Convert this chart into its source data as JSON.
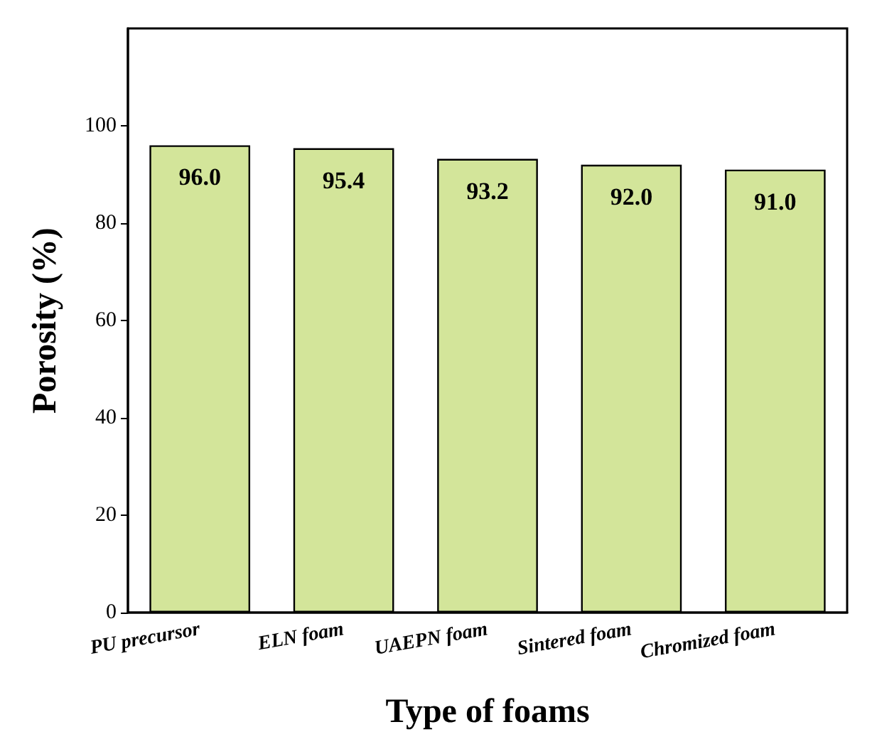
{
  "chart_data": {
    "type": "bar",
    "xlabel": "Type of foams",
    "ylabel": "Porosity (%)",
    "categories": [
      "PU precursor",
      "ELN foam",
      "UAEPN foam",
      "Sintered foam",
      "Chromized foam"
    ],
    "values": [
      96.0,
      95.4,
      93.2,
      92.0,
      91.0
    ],
    "value_labels": [
      "96.0",
      "95.4",
      "93.2",
      "92.0",
      "91.0"
    ],
    "color": "#d3e59a",
    "ylim": [
      0,
      120
    ],
    "yticks": [
      0,
      20,
      40,
      60,
      80,
      100
    ],
    "grid": false
  }
}
